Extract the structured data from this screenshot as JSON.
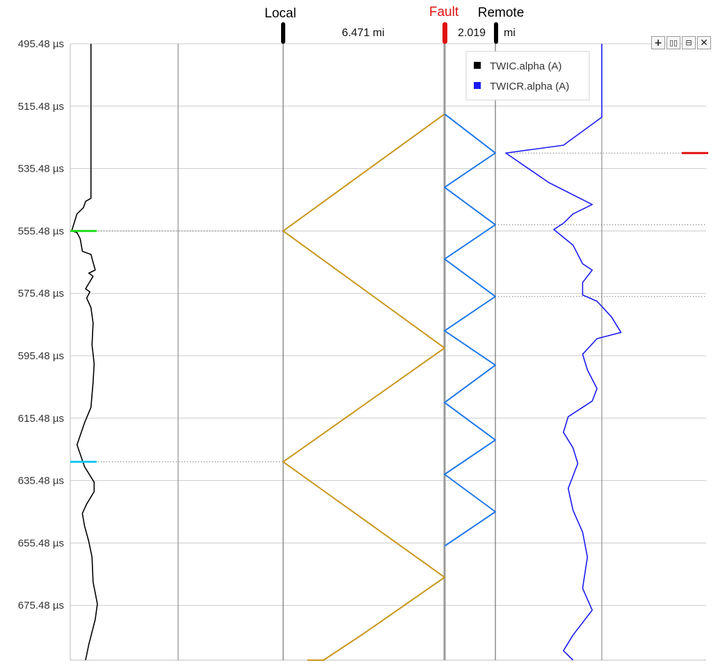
{
  "toolbar": {
    "buttons": [
      {
        "name": "zoom-in-button",
        "glyph": "+",
        "icon": "plus-icon"
      },
      {
        "name": "split-horizontal-button",
        "glyph": "▯▯",
        "icon": "columns-icon"
      },
      {
        "name": "split-vertical-button",
        "glyph": "⊟",
        "icon": "rows-icon"
      },
      {
        "name": "close-button",
        "glyph": "✕",
        "icon": "close-icon"
      }
    ]
  },
  "markers": {
    "local": {
      "label": "Local",
      "color": "#000000"
    },
    "fault": {
      "label": "Fault",
      "color": "#e01010"
    },
    "remote": {
      "label": "Remote",
      "color": "#000000"
    },
    "distance_local_fault": "6.471 mi",
    "distance_fault_remote_value": "2.019",
    "distance_fault_remote_unit": "mi"
  },
  "chart_data": {
    "type": "line",
    "orientation": "vertical-time",
    "y_axis": {
      "unit": "µs",
      "range": [
        495.48,
        700.0
      ],
      "ticks": [
        "495.48 µs",
        "515.48 µs",
        "535.48 µs",
        "555.48 µs",
        "575.48 µs",
        "595.48 µs",
        "615.48 µs",
        "635.48 µs",
        "655.48 µs",
        "675.48 µs"
      ],
      "grid": true
    },
    "legend": {
      "placement": "top-right",
      "entries": [
        {
          "label": "TWIC.alpha (A)",
          "color": "#000000"
        },
        {
          "label": "TWICR.alpha (A)",
          "color": "#1a1af0"
        }
      ]
    },
    "series": [
      {
        "name": "TWIC.alpha (A)",
        "color": "#000000",
        "points": [
          [
            0.18,
            495.48
          ],
          [
            0.18,
            520
          ],
          [
            0.18,
            540
          ],
          [
            0.18,
            545
          ],
          [
            0.13,
            546
          ],
          [
            0.11,
            548
          ],
          [
            0.05,
            550
          ],
          [
            0.0,
            555.48
          ],
          [
            0.05,
            556
          ],
          [
            0.08,
            558
          ],
          [
            0.1,
            562
          ],
          [
            0.18,
            563
          ],
          [
            0.22,
            568
          ],
          [
            0.16,
            569
          ],
          [
            0.2,
            570
          ],
          [
            0.13,
            574
          ],
          [
            0.17,
            575
          ],
          [
            0.14,
            577
          ],
          [
            0.18,
            580
          ],
          [
            0.2,
            585
          ],
          [
            0.19,
            592
          ],
          [
            0.21,
            598
          ],
          [
            0.2,
            604
          ],
          [
            0.18,
            612
          ],
          [
            0.12,
            617
          ],
          [
            0.05,
            624
          ],
          [
            0.09,
            628
          ],
          [
            0.12,
            631
          ],
          [
            0.21,
            636
          ],
          [
            0.21,
            639
          ],
          [
            0.14,
            643
          ],
          [
            0.1,
            646
          ],
          [
            0.12,
            650
          ],
          [
            0.16,
            655
          ],
          [
            0.19,
            660
          ],
          [
            0.2,
            668
          ],
          [
            0.24,
            675
          ],
          [
            0.22,
            680
          ],
          [
            0.16,
            688
          ],
          [
            0.13,
            695
          ],
          [
            0.13,
            699
          ]
        ],
        "marks": [
          {
            "y": 555.48,
            "color": "#22dd22"
          },
          {
            "y": 629.48,
            "color": "#18c6f0"
          }
        ]
      },
      {
        "name": "TWICR.alpha (A)",
        "color": "#1a1af0",
        "points": [
          [
            1.0,
            495.48
          ],
          [
            1.0,
            519
          ],
          [
            0.6,
            528
          ],
          [
            0.0,
            530.5
          ],
          [
            0.45,
            540
          ],
          [
            0.9,
            547
          ],
          [
            0.7,
            550
          ],
          [
            0.6,
            553
          ],
          [
            0.5,
            555
          ],
          [
            0.7,
            560
          ],
          [
            0.8,
            566
          ],
          [
            0.9,
            568
          ],
          [
            0.8,
            572
          ],
          [
            0.8,
            576
          ],
          [
            0.95,
            578
          ],
          [
            1.1,
            583
          ],
          [
            1.2,
            588
          ],
          [
            0.95,
            590
          ],
          [
            0.8,
            595
          ],
          [
            0.85,
            600
          ],
          [
            0.95,
            606
          ],
          [
            0.9,
            610
          ],
          [
            0.65,
            615
          ],
          [
            0.6,
            620
          ],
          [
            0.7,
            625
          ],
          [
            0.75,
            630
          ],
          [
            0.65,
            638
          ],
          [
            0.7,
            645
          ],
          [
            0.8,
            652
          ],
          [
            0.85,
            660
          ],
          [
            0.8,
            670
          ],
          [
            0.9,
            677
          ],
          [
            0.7,
            685
          ],
          [
            0.6,
            690
          ],
          [
            0.7,
            698
          ]
        ],
        "marks": [
          {
            "y": 530.5,
            "color": "#e01010"
          }
        ]
      },
      {
        "name": "",
        "color": "#c9961c",
        "points": [
          [
            1,
            517.98
          ],
          [
            0,
            555.48
          ],
          [
            1,
            592.98
          ],
          [
            0,
            629.48
          ],
          [
            1,
            666.48
          ],
          [
            0.5,
            684.48
          ],
          [
            0.25,
            693.48
          ],
          [
            0.15,
            697.0
          ]
        ]
      },
      {
        "name": "",
        "color": "#1e78e8",
        "points": [
          [
            0,
            517.98
          ],
          [
            1,
            530.48
          ],
          [
            0,
            541.48
          ],
          [
            1,
            553.48
          ],
          [
            0,
            564.48
          ],
          [
            1,
            576.48
          ],
          [
            0,
            587.48
          ],
          [
            1,
            598.48
          ],
          [
            0,
            610.48
          ],
          [
            1,
            622.48
          ],
          [
            0,
            633.48
          ],
          [
            1,
            645.48
          ],
          [
            0,
            656.48
          ]
        ]
      }
    ],
    "reference_lines": [
      {
        "y": 555.48,
        "from": "TWIC.alpha (A)"
      },
      {
        "y": 629.48,
        "from": "TWIC.alpha (A)"
      },
      {
        "y": 530.5,
        "from": "TWICR.alpha (A)"
      },
      {
        "y": 553.48,
        "from": "TWICR.alpha (A)"
      },
      {
        "y": 576.48,
        "from": "TWICR.alpha (A)"
      }
    ]
  }
}
